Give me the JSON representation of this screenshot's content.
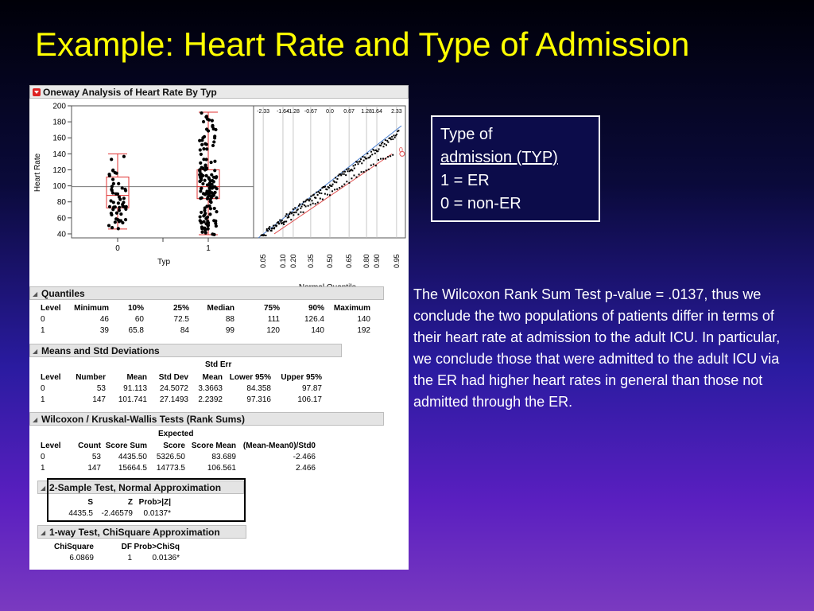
{
  "slide": {
    "title": "Example: Heart Rate and Type of Admission"
  },
  "legend": {
    "line1": "Type of",
    "line2": "admission (TYP)",
    "line3": "1 = ER",
    "line4": "0 = non-ER"
  },
  "explanation": "The Wilcoxon Rank Sum Test p-value = .0137, thus we conclude the two populations of patients differ in terms of their heart rate at admission to the adult ICU.   In particular, we conclude those that were admitted to the adult ICU via the ER had higher heart rates in general than those not admitted through the ER.",
  "oneway": {
    "title": "Oneway Analysis of Heart Rate By Typ",
    "ylabel": "Heart Rate",
    "xlabel": "Typ",
    "x_ticks": [
      "0",
      "1"
    ],
    "y_ticks": [
      40,
      60,
      80,
      100,
      120,
      140,
      160,
      180,
      200
    ],
    "quantile_top_ticks": [
      "-2.33",
      "-1.64",
      "-1.28",
      "-0.67",
      "0.0",
      "0.67",
      "1.28",
      "1.64",
      "2.33"
    ],
    "quantile_bottom_ticks": [
      "0.05",
      "0.10",
      "0.20",
      "0.35",
      "0.50",
      "0.65",
      "0.80",
      "0.90",
      "0.95"
    ],
    "quantile_xlabel": "Normal Quantile",
    "quantile_group_label": "0"
  },
  "quantiles": {
    "title": "Quantiles",
    "headers": [
      "Level",
      "Minimum",
      "10%",
      "25%",
      "Median",
      "75%",
      "90%",
      "Maximum"
    ],
    "rows": [
      [
        "0",
        "46",
        "60",
        "72.5",
        "88",
        "111",
        "126.4",
        "140"
      ],
      [
        "1",
        "39",
        "65.8",
        "84",
        "99",
        "120",
        "140",
        "192"
      ]
    ]
  },
  "means": {
    "title": "Means and Std Deviations",
    "header_top": "Std Err",
    "headers": [
      "Level",
      "Number",
      "Mean",
      "Std Dev",
      "Mean",
      "Lower 95%",
      "Upper 95%"
    ],
    "rows": [
      [
        "0",
        "53",
        "91.113",
        "24.5072",
        "3.3663",
        "84.358",
        "97.87"
      ],
      [
        "1",
        "147",
        "101.741",
        "27.1493",
        "2.2392",
        "97.316",
        "106.17"
      ]
    ]
  },
  "wilcoxon": {
    "title": "Wilcoxon / Kruskal-Wallis Tests (Rank Sums)",
    "header_top": "Expected",
    "headers": [
      "Level",
      "Count",
      "Score Sum",
      "Score",
      "Score Mean",
      "(Mean-Mean0)/Std0"
    ],
    "rows": [
      [
        "0",
        "53",
        "4435.50",
        "5326.50",
        "83.689",
        "-2.466"
      ],
      [
        "1",
        "147",
        "15664.5",
        "14773.5",
        "106.561",
        "2.466"
      ]
    ]
  },
  "two_sample": {
    "title": "2-Sample Test, Normal Approximation",
    "headers": [
      "S",
      "Z",
      "Prob>|Z|"
    ],
    "row": [
      "4435.5",
      "-2.46579",
      "0.0137*"
    ]
  },
  "chisq": {
    "title": "1-way Test, ChiSquare Approximation",
    "headers": [
      "ChiSquare",
      "DF",
      "Prob>ChiSq"
    ],
    "row": [
      "6.0869",
      "1",
      "0.0136*"
    ]
  },
  "chart_data": {
    "type": "scatter",
    "title": "Oneway Analysis of Heart Rate By Typ",
    "xlabel": "Typ",
    "ylabel": "Heart Rate",
    "categories": [
      "0",
      "1"
    ],
    "ylim": [
      35,
      200
    ],
    "boxes": [
      {
        "category": "0",
        "min": 46,
        "q1": 72.5,
        "median": 88,
        "q3": 111,
        "max": 140,
        "mean": 91.113
      },
      {
        "category": "1",
        "min": 39,
        "q1": 84,
        "median": 99,
        "q3": 120,
        "max": 192,
        "mean": 101.741
      }
    ],
    "grand_mean": 99,
    "grid": false
  }
}
